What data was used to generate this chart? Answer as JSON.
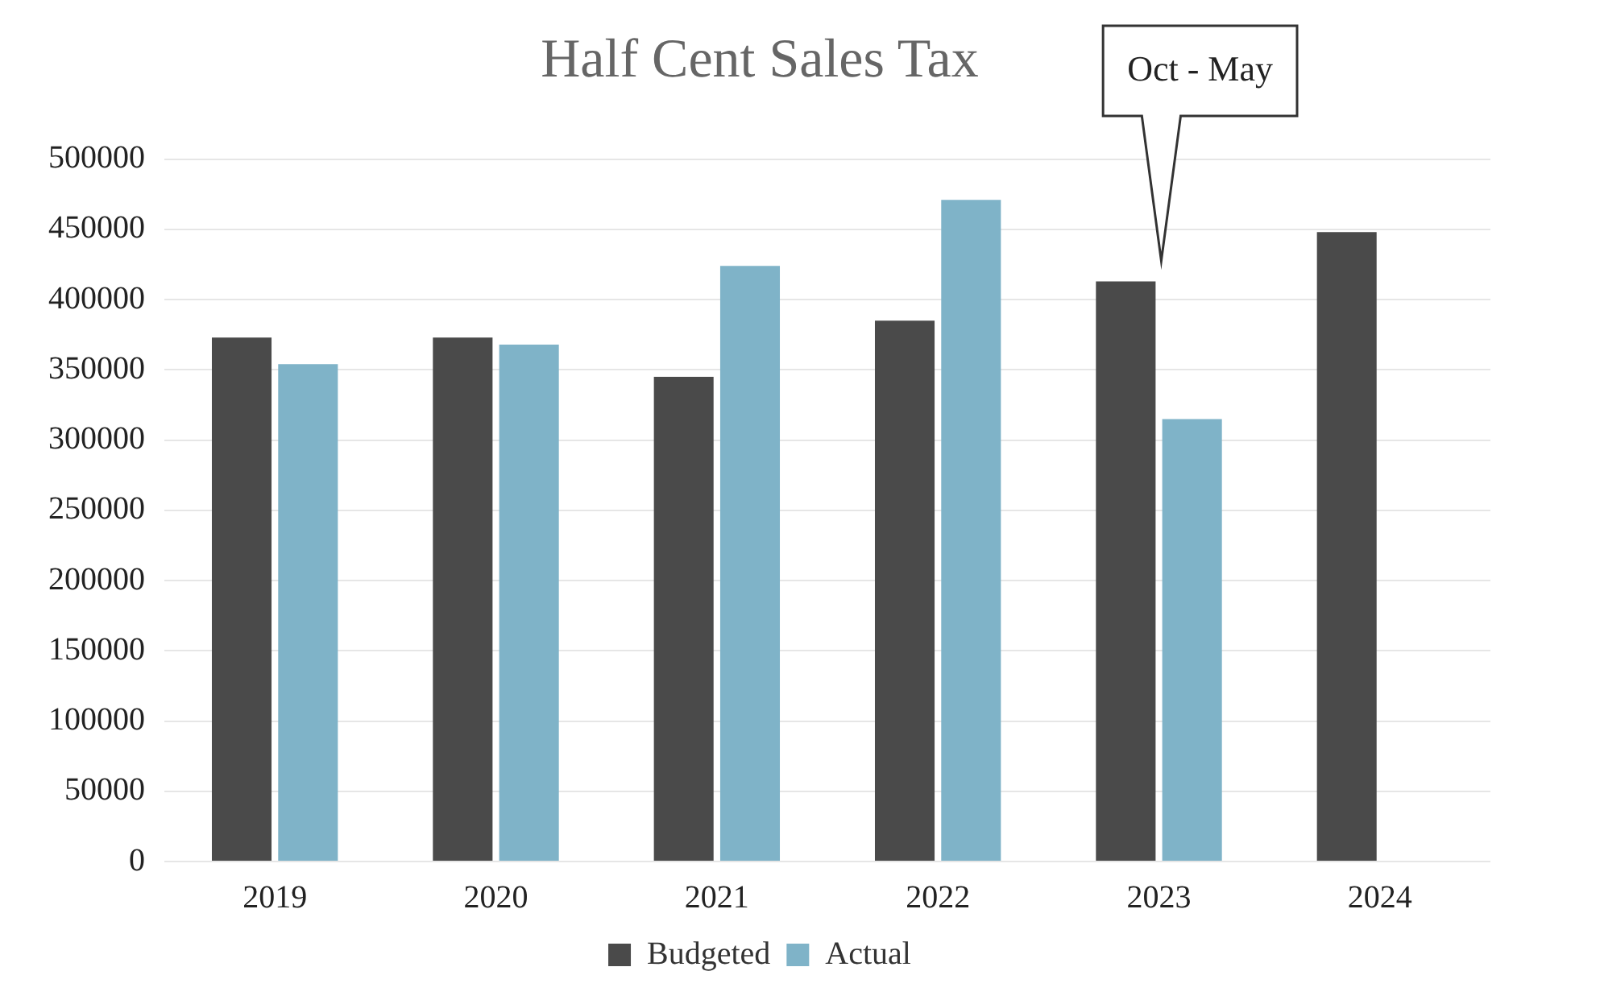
{
  "chart_data": {
    "type": "bar",
    "title": "Half Cent Sales Tax",
    "categories": [
      "2019",
      "2020",
      "2021",
      "2022",
      "2023",
      "2024"
    ],
    "series": [
      {
        "name": "Budgeted",
        "color": "#4a4a4a",
        "values": [
          373000,
          373000,
          345000,
          385000,
          413000,
          448000
        ]
      },
      {
        "name": "Actual",
        "color": "#7fb3c8",
        "values": [
          354000,
          368000,
          424000,
          471000,
          315000,
          null
        ]
      }
    ],
    "ylim": [
      0,
      500000
    ],
    "yticks": [
      0,
      50000,
      100000,
      150000,
      200000,
      250000,
      300000,
      350000,
      400000,
      450000,
      500000
    ],
    "grid": "y",
    "legend": "bottom",
    "annotations": [
      "Oct - May"
    ]
  }
}
